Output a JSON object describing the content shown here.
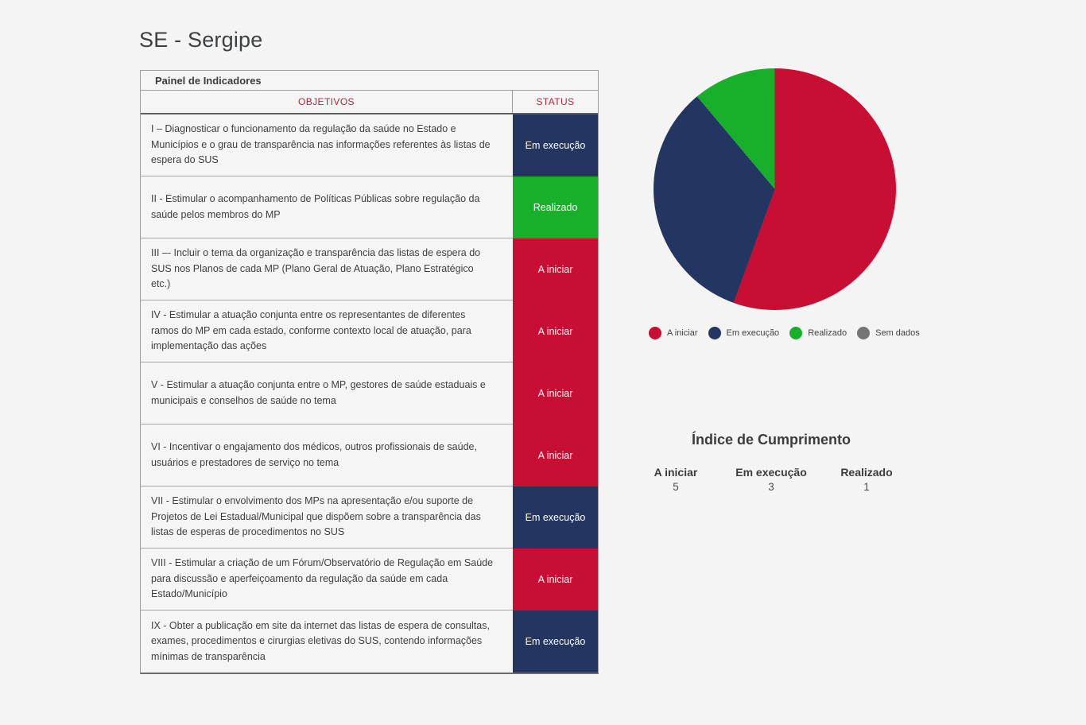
{
  "page": {
    "title": "SE - Sergipe"
  },
  "table": {
    "title": "Painel de Indicadores",
    "columns": {
      "objectives": "OBJETIVOS",
      "status": "STATUS"
    },
    "rows": [
      {
        "objective": "I – Diagnosticar o funcionamento da regulação da saúde no Estado e Municípios e o grau de transparência nas informações referentes às listas de espera do SUS",
        "status": "Em execução",
        "status_key": "em_execucao"
      },
      {
        "objective": "II - Estimular o acompanhamento de Políticas Públicas sobre regulação da saúde pelos membros do MP",
        "status": "Realizado",
        "status_key": "realizado"
      },
      {
        "objective": "III –- Incluir o tema da organização e transparência das listas de espera do SUS nos Planos de cada MP (Plano Geral de Atuação, Plano Estratégico etc.)",
        "status": "A iniciar",
        "status_key": "a_iniciar"
      },
      {
        "objective": "IV - Estimular a atuação conjunta entre os representantes de diferentes ramos do MP em cada estado, conforme contexto local de atuação, para implementação das ações",
        "status": "A iniciar",
        "status_key": "a_iniciar"
      },
      {
        "objective": "V - Estimular a atuação conjunta entre o MP, gestores de saúde estaduais e municipais e conselhos de saúde no tema",
        "status": "A iniciar",
        "status_key": "a_iniciar"
      },
      {
        "objective": "VI - Incentivar o engajamento dos médicos, outros profissionais de saúde, usuários e prestadores de serviço no tema",
        "status": "A iniciar",
        "status_key": "a_iniciar"
      },
      {
        "objective": "VII - Estimular o envolvimento dos MPs na apresentação e/ou suporte de Projetos de Lei Estadual/Municipal que dispõem sobre a transparência das listas de esperas de procedimentos no SUS",
        "status": "Em execução",
        "status_key": "em_execucao"
      },
      {
        "objective": "VIII - Estimular a criação de um Fórum/Observatório de Regulação em Saúde para discussão e aperfeiçoamento da regulação da saúde em cada Estado/Município",
        "status": "A iniciar",
        "status_key": "a_iniciar"
      },
      {
        "objective": "IX - Obter a publicação em site da internet das listas de espera de consultas, exames, procedimentos e cirurgias eletivas do SUS, contendo informações mínimas de transparência",
        "status": "Em execução",
        "status_key": "em_execucao"
      }
    ]
  },
  "status_colors": {
    "a_iniciar": "#C90E33",
    "em_execucao": "#233662",
    "realizado": "#18B02A",
    "sem_dados": "#757575"
  },
  "chart_data": {
    "type": "pie",
    "categories": [
      "A iniciar",
      "Em execução",
      "Realizado",
      "Sem dados"
    ],
    "values": [
      5,
      3,
      1,
      0
    ],
    "colors": [
      "#C90E33",
      "#233662",
      "#18B02A",
      "#757575"
    ],
    "title": "",
    "start_angle_deg": 0,
    "direction": "clockwise",
    "legend_position": "bottom"
  },
  "legend": {
    "items": [
      {
        "label": "A iniciar",
        "color": "#C90E33"
      },
      {
        "label": "Em execução",
        "color": "#233662"
      },
      {
        "label": "Realizado",
        "color": "#18B02A"
      },
      {
        "label": "Sem dados",
        "color": "#757575"
      }
    ]
  },
  "index_section": {
    "title": "Índice de Cumprimento",
    "stats": [
      {
        "label": "A iniciar",
        "value": "5"
      },
      {
        "label": "Em execução",
        "value": "3"
      },
      {
        "label": "Realizado",
        "value": "1"
      }
    ]
  }
}
